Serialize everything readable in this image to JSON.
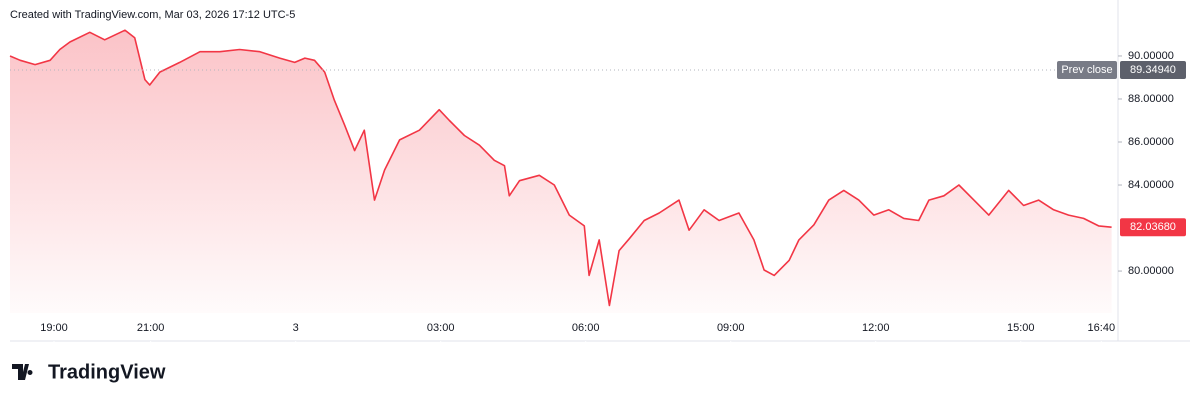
{
  "header": "Created with TradingView.com, Mar 03, 2026 17:12 UTC-5",
  "brand": "TradingView",
  "chart_data": {
    "type": "line",
    "x": [
      18.09,
      18.3,
      18.61,
      18.92,
      19.12,
      19.33,
      19.74,
      20.05,
      20.47,
      20.67,
      20.88,
      20.98,
      21.19,
      21.6,
      22.02,
      22.43,
      22.84,
      23.26,
      23.67,
      23.98,
      24.19,
      24.39,
      24.6,
      24.8,
      25.01,
      25.22,
      25.42,
      25.63,
      25.84,
      26.15,
      26.56,
      26.97,
      27.18,
      27.49,
      27.8,
      28.11,
      28.32,
      28.42,
      28.63,
      29.04,
      29.35,
      29.66,
      29.97,
      30.07,
      30.28,
      30.49,
      30.69,
      30.9,
      31.21,
      31.52,
      31.93,
      32.14,
      32.45,
      32.76,
      33.17,
      33.48,
      33.69,
      33.9,
      34.21,
      34.41,
      34.72,
      35.03,
      35.34,
      35.65,
      35.96,
      36.27,
      36.58,
      36.89,
      37.1,
      37.41,
      37.72,
      38.03,
      38.34,
      38.75,
      39.06,
      39.37,
      39.68,
      39.99,
      40.3,
      40.61,
      40.88
    ],
    "series": [
      {
        "color": "#f23645",
        "values": [
          90.0,
          89.8,
          89.6,
          89.8,
          90.3,
          90.65,
          91.1,
          90.75,
          91.2,
          90.85,
          88.9,
          88.65,
          89.25,
          89.7,
          90.2,
          90.2,
          90.3,
          90.2,
          89.9,
          89.7,
          89.9,
          89.8,
          89.25,
          87.95,
          86.8,
          85.6,
          86.55,
          83.3,
          84.7,
          86.1,
          86.55,
          87.5,
          87.0,
          86.3,
          85.85,
          85.15,
          84.9,
          83.5,
          84.2,
          84.45,
          84.0,
          82.6,
          82.1,
          79.8,
          81.45,
          78.4,
          80.95,
          81.5,
          82.35,
          82.7,
          83.3,
          81.9,
          82.85,
          82.35,
          82.7,
          81.45,
          80.05,
          79.8,
          80.5,
          81.45,
          82.15,
          83.3,
          83.75,
          83.3,
          82.6,
          82.85,
          82.45,
          82.35,
          83.3,
          83.5,
          84.0,
          83.3,
          82.6,
          83.75,
          83.05,
          83.3,
          82.85,
          82.6,
          82.45,
          82.1,
          82.0368
        ]
      }
    ],
    "xlim": [
      18.09,
      40.95
    ],
    "xticks": [
      {
        "value": 19,
        "label": "19:00"
      },
      {
        "value": 21,
        "label": "21:00"
      },
      {
        "value": 24,
        "label": "3"
      },
      {
        "value": 27,
        "label": "03:00"
      },
      {
        "value": 30,
        "label": "06:00"
      },
      {
        "value": 33,
        "label": "09:00"
      },
      {
        "value": 36,
        "label": "12:00"
      },
      {
        "value": 39,
        "label": "15:00"
      },
      {
        "value": 40.6667,
        "label": "16:40"
      }
    ],
    "ylim": [
      78.05,
      92.23
    ],
    "yticks": [
      {
        "value": 80,
        "label": "80.00000"
      },
      {
        "value": 84,
        "label": "84.00000"
      },
      {
        "value": 86,
        "label": "86.00000"
      },
      {
        "value": 88,
        "label": "88.00000"
      },
      {
        "value": 90,
        "label": "90.00000"
      }
    ],
    "prev_close": {
      "name": "Prev close",
      "value": 89.3494,
      "label": "89.34940"
    },
    "last_price": {
      "value": 82.0368,
      "label": "82.03680"
    }
  }
}
